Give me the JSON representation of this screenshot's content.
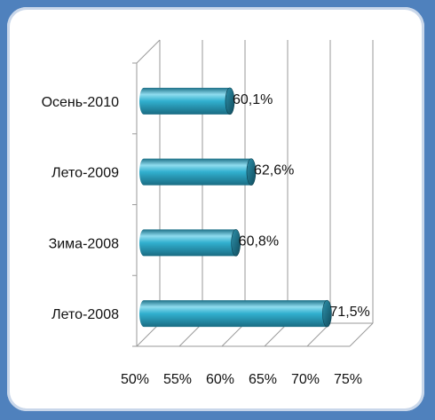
{
  "chart_data": {
    "type": "bar",
    "orientation": "horizontal",
    "style": "3d-cylinder",
    "categories": [
      "Осень-2010",
      "Лето-2009",
      "Зима-2008",
      "Лето-2008"
    ],
    "values": [
      60.1,
      62.6,
      60.8,
      71.5
    ],
    "data_labels": [
      "60,1%",
      "62,6%",
      "60,8%",
      "71,5%"
    ],
    "xlim": [
      50,
      75
    ],
    "x_ticks": [
      "50%",
      "55%",
      "60%",
      "65%",
      "70%",
      "75%"
    ],
    "grid": true,
    "bar_color": "#31b0cf",
    "bar_dark_color": "#1c6f86",
    "bar_light_color": "#8fdcef",
    "background_color": "#4f81bd"
  }
}
